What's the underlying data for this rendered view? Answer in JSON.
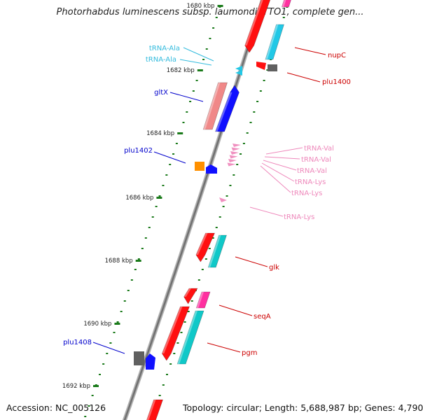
{
  "title": "Photorhabdus luminescens subsp. laumondii TTO1, complete gen...",
  "footer": {
    "accession": "Accession: NC_005126",
    "summary": "Topology: circular; Length: 5,688,987 bp; Genes: 4,790"
  },
  "ticks": [
    "1680 kbp",
    "1682 kbp",
    "1684 kbp",
    "1686 kbp",
    "1688 kbp",
    "1690 kbp",
    "1692 kbp"
  ],
  "colors": {
    "backbone": "#8c8c8c",
    "tick": "#1a7a1a",
    "red": "#ff1010",
    "blue": "#1010ff",
    "cyan": "#22c8e6",
    "salmon": "#f08888",
    "teal": "#10c8c8",
    "pink": "#f090c0",
    "magenta": "#ff30a0",
    "orange": "#ff9000",
    "gray": "#606060",
    "label_blue": "#0000cc",
    "label_red": "#cc0000",
    "label_cyan": "#33bbdd",
    "label_pink": "#ee88bb"
  },
  "labels": {
    "left": [
      {
        "id": "trna-ala-1",
        "text": "tRNA-Ala",
        "color": "label_cyan"
      },
      {
        "id": "trna-ala-2",
        "text": "tRNA-Ala",
        "color": "label_cyan"
      },
      {
        "id": "gltx",
        "text": "gltX",
        "color": "label_blue"
      },
      {
        "id": "plu1402",
        "text": "plu1402",
        "color": "label_blue"
      },
      {
        "id": "plu1408",
        "text": "plu1408",
        "color": "label_blue"
      }
    ],
    "right": [
      {
        "id": "nupc",
        "text": "nupC",
        "color": "label_red"
      },
      {
        "id": "plu1400",
        "text": "plu1400",
        "color": "label_red"
      },
      {
        "id": "trna-val-1",
        "text": "tRNA-Val",
        "color": "label_pink"
      },
      {
        "id": "trna-val-2",
        "text": "tRNA-Val",
        "color": "label_pink"
      },
      {
        "id": "trna-val-3",
        "text": "tRNA-Val",
        "color": "label_pink"
      },
      {
        "id": "trna-lys-1",
        "text": "tRNA-Lys",
        "color": "label_pink"
      },
      {
        "id": "trna-lys-2",
        "text": "tRNA-Lys",
        "color": "label_pink"
      },
      {
        "id": "trna-lys-3",
        "text": "tRNA-Lys",
        "color": "label_pink"
      },
      {
        "id": "glk",
        "text": "glk",
        "color": "label_red"
      },
      {
        "id": "seqa",
        "text": "seqA",
        "color": "label_red"
      },
      {
        "id": "pgm",
        "text": "pgm",
        "color": "label_red"
      }
    ]
  }
}
